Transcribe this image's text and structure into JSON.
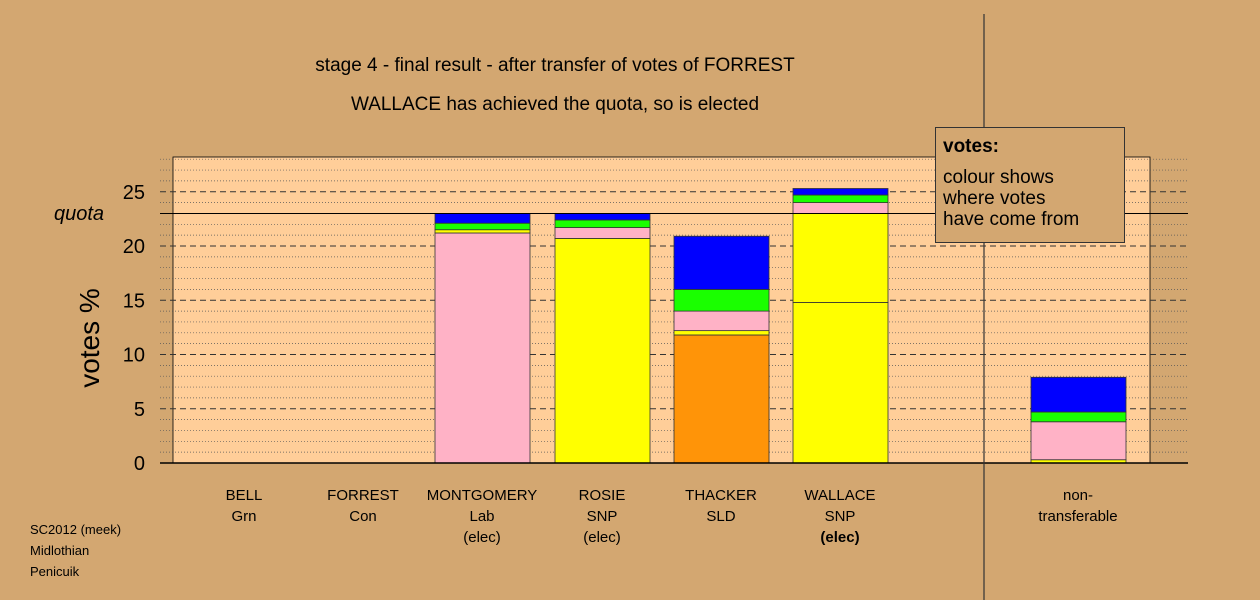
{
  "title": "stage 4 - final result - after transfer of votes of FORREST",
  "subtitle": "WALLACE has achieved the quota, so is elected",
  "legend": {
    "title": "votes:",
    "lines": [
      "colour shows",
      "where votes",
      "have come from"
    ]
  },
  "footer": [
    "SC2012 (meek)",
    "Midlothian",
    "Penicuik"
  ],
  "quota_label": "quota",
  "colors": {
    "orange": "#ff9408",
    "yellow": "#ffff00",
    "pink": "#ffb2c6",
    "green": "#1aff00",
    "blue": "#0000ff",
    "plot_bg": "#ffce99",
    "page_bg": "#d3a771"
  },
  "candidates": [
    {
      "name": "BELL",
      "party": "Grn",
      "status": ""
    },
    {
      "name": "FORREST",
      "party": "Con",
      "status": ""
    },
    {
      "name": "MONTGOMERY",
      "party": "Lab",
      "status": "(elec)"
    },
    {
      "name": "ROSIE",
      "party": "SNP",
      "status": "(elec)"
    },
    {
      "name": "THACKER",
      "party": "SLD",
      "status": ""
    },
    {
      "name": "WALLACE",
      "party": "SNP",
      "status": "(elec)"
    }
  ],
  "nontransferable_label": [
    "non-",
    "transferable"
  ],
  "chart_data": {
    "type": "bar",
    "stacked": true,
    "title": "stage 4 - final result - after transfer of votes of FORREST",
    "subtitle": "WALLACE has achieved the quota, so is elected",
    "ylabel": "votes %",
    "ylim": [
      0,
      28
    ],
    "yticks": [
      0,
      5,
      10,
      15,
      20,
      25
    ],
    "quota": 23.0,
    "categories": [
      "BELL Grn",
      "FORREST Con",
      "MONTGOMERY Lab (elec)",
      "ROSIE SNP (elec)",
      "THACKER SLD",
      "WALLACE SNP (elec)",
      "non-transferable"
    ],
    "stacks": [
      [],
      [],
      [
        {
          "color": "pink",
          "value": 21.2
        },
        {
          "color": "yellow",
          "value": 0.3
        },
        {
          "color": "green",
          "value": 0.6
        },
        {
          "color": "blue",
          "value": 0.9
        }
      ],
      [
        {
          "color": "yellow",
          "value": 20.7
        },
        {
          "color": "pink",
          "value": 1.0
        },
        {
          "color": "green",
          "value": 0.7
        },
        {
          "color": "blue",
          "value": 0.6
        }
      ],
      [
        {
          "color": "orange",
          "value": 11.8
        },
        {
          "color": "yellow",
          "value": 0.4
        },
        {
          "color": "pink",
          "value": 1.8
        },
        {
          "color": "green",
          "value": 2.0
        },
        {
          "color": "blue",
          "value": 4.9
        }
      ],
      [
        {
          "color": "yellow",
          "value": 14.8
        },
        {
          "color": "yellow",
          "value": 8.2
        },
        {
          "color": "pink",
          "value": 1.0
        },
        {
          "color": "green",
          "value": 0.7
        },
        {
          "color": "blue",
          "value": 0.6
        }
      ],
      [
        {
          "color": "yellow",
          "value": 0.3
        },
        {
          "color": "pink",
          "value": 3.5
        },
        {
          "color": "green",
          "value": 0.9
        },
        {
          "color": "blue",
          "value": 3.2
        }
      ]
    ]
  }
}
